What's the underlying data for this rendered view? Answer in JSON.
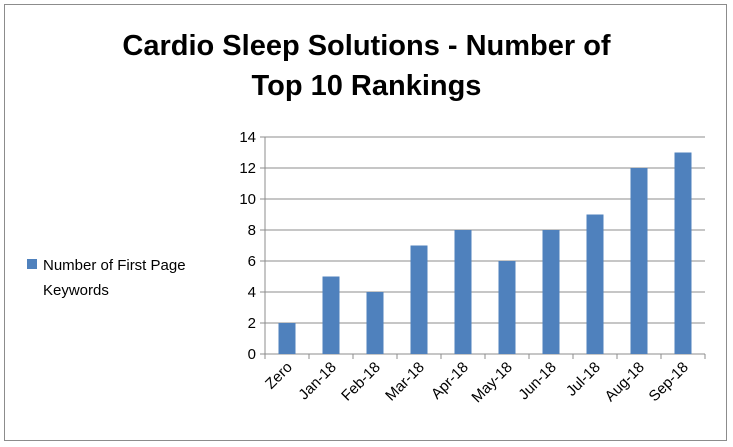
{
  "chart_data": {
    "type": "bar",
    "title_line1": "Cardio Sleep Solutions - Number of",
    "title_line2": "Top 10 Rankings",
    "categories": [
      "Zero",
      "Jan-18",
      "Feb-18",
      "Mar-18",
      "Apr-18",
      "May-18",
      "Jun-18",
      "Jul-18",
      "Aug-18",
      "Sep-18"
    ],
    "series": [
      {
        "name": "Number of First Page Keywords",
        "values": [
          2,
          5,
          4,
          7,
          8,
          6,
          8,
          9,
          12,
          13
        ]
      }
    ],
    "legend_line1": "Number of First Page",
    "legend_line2": "Keywords",
    "ylim": [
      0,
      14
    ],
    "yticks": [
      "0",
      "2",
      "4",
      "6",
      "8",
      "10",
      "12",
      "14"
    ],
    "grid": true,
    "legend_position": "left",
    "bar_color": "#4f81bd"
  }
}
